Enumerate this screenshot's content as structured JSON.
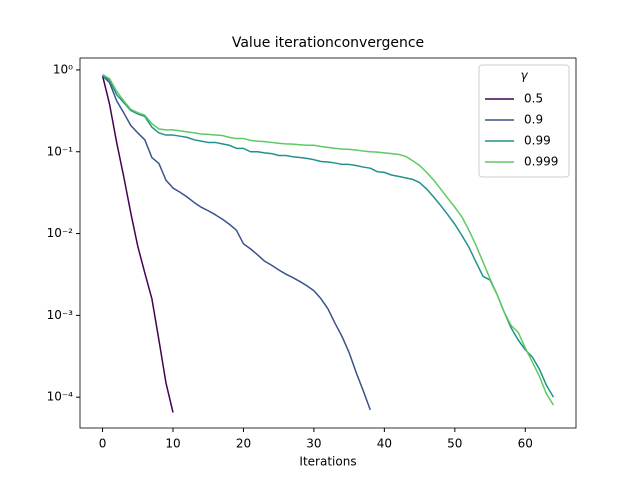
{
  "chart_data": {
    "type": "line",
    "title": "Value iterationconvergence",
    "x_label": "Iterations",
    "legend_title": "γ",
    "legend": "upper right",
    "log_y": true,
    "xlim": [
      -3.2,
      67.2
    ],
    "ylim": [
      4.2e-05,
      1.4
    ],
    "xticks": [
      0,
      10,
      20,
      30,
      40,
      50,
      60
    ],
    "yticks": [
      {
        "value": 0.0001,
        "label": "10⁻⁴"
      },
      {
        "value": 0.001,
        "label": "10⁻³"
      },
      {
        "value": 0.01,
        "label": "10⁻²"
      },
      {
        "value": 0.1,
        "label": "10⁻¹"
      },
      {
        "value": 1,
        "label": "10⁰"
      }
    ],
    "x": [
      0,
      1,
      2,
      3,
      4,
      5,
      6,
      7,
      8,
      9,
      10,
      11,
      12,
      13,
      14,
      15,
      16,
      17,
      18,
      19,
      20,
      21,
      22,
      23,
      24,
      25,
      26,
      27,
      28,
      29,
      30,
      31,
      32,
      33,
      34,
      35,
      36,
      37,
      38,
      39,
      40,
      41,
      42,
      43,
      44,
      45,
      46,
      47,
      48,
      49,
      50,
      51,
      52,
      53,
      54,
      55,
      56,
      57,
      58,
      59,
      60,
      61,
      62,
      63,
      64
    ],
    "series": [
      {
        "name": "0.5",
        "color": "#440154",
        "values": [
          0.85,
          0.38,
          0.13,
          0.05,
          0.018,
          0.007,
          0.0033,
          0.0016,
          0.0005,
          0.00015,
          6.5e-05,
          null,
          null,
          null,
          null,
          null,
          null,
          null,
          null,
          null,
          null,
          null,
          null,
          null,
          null,
          null,
          null,
          null,
          null,
          null,
          null,
          null,
          null,
          null,
          null,
          null,
          null,
          null,
          null,
          null,
          null,
          null,
          null,
          null,
          null,
          null,
          null,
          null,
          null,
          null,
          null,
          null,
          null,
          null,
          null,
          null,
          null,
          null,
          null,
          null,
          null,
          null,
          null,
          null,
          null
        ]
      },
      {
        "name": "0.9",
        "color": "#3b528b",
        "values": [
          0.85,
          0.7,
          0.42,
          0.3,
          0.21,
          0.17,
          0.14,
          0.085,
          0.072,
          0.045,
          0.036,
          0.032,
          0.028,
          0.024,
          0.021,
          0.019,
          0.017,
          0.015,
          0.013,
          0.011,
          0.0075,
          0.0065,
          0.0055,
          0.0046,
          0.0041,
          0.0036,
          0.0032,
          0.0029,
          0.0026,
          0.0023,
          0.002,
          0.0016,
          0.0012,
          0.0008,
          0.00055,
          0.00035,
          0.0002,
          0.00012,
          7e-05,
          null,
          null,
          null,
          null,
          null,
          null,
          null,
          null,
          null,
          null,
          null,
          null,
          null,
          null,
          null,
          null,
          null,
          null,
          null,
          null,
          null,
          null,
          null,
          null,
          null,
          null
        ]
      },
      {
        "name": "0.99",
        "color": "#21918c",
        "values": [
          0.85,
          0.75,
          0.5,
          0.4,
          0.32,
          0.29,
          0.27,
          0.2,
          0.17,
          0.16,
          0.16,
          0.155,
          0.15,
          0.14,
          0.135,
          0.13,
          0.13,
          0.125,
          0.12,
          0.11,
          0.11,
          0.1,
          0.1,
          0.097,
          0.095,
          0.09,
          0.09,
          0.087,
          0.085,
          0.083,
          0.08,
          0.076,
          0.075,
          0.073,
          0.07,
          0.07,
          0.068,
          0.065,
          0.063,
          0.057,
          0.056,
          0.052,
          0.05,
          0.048,
          0.046,
          0.042,
          0.035,
          0.028,
          0.022,
          0.017,
          0.013,
          0.0095,
          0.0068,
          0.0045,
          0.003,
          0.0027,
          0.0018,
          0.0011,
          0.0007,
          0.0005,
          0.00038,
          0.00031,
          0.00022,
          0.00014,
          0.0001
        ]
      },
      {
        "name": "0.999",
        "color": "#5ec962",
        "values": [
          0.88,
          0.78,
          0.55,
          0.42,
          0.33,
          0.3,
          0.28,
          0.22,
          0.19,
          0.185,
          0.185,
          0.18,
          0.175,
          0.17,
          0.165,
          0.163,
          0.16,
          0.158,
          0.15,
          0.145,
          0.145,
          0.138,
          0.135,
          0.133,
          0.13,
          0.127,
          0.125,
          0.124,
          0.122,
          0.12,
          0.12,
          0.116,
          0.113,
          0.11,
          0.108,
          0.107,
          0.105,
          0.102,
          0.1,
          0.099,
          0.097,
          0.095,
          0.093,
          0.088,
          0.078,
          0.068,
          0.056,
          0.045,
          0.035,
          0.027,
          0.021,
          0.016,
          0.011,
          0.0072,
          0.0045,
          0.0028,
          0.0018,
          0.0011,
          0.00075,
          0.00062,
          0.0004,
          0.00027,
          0.00018,
          0.00011,
          8e-05
        ]
      }
    ]
  }
}
